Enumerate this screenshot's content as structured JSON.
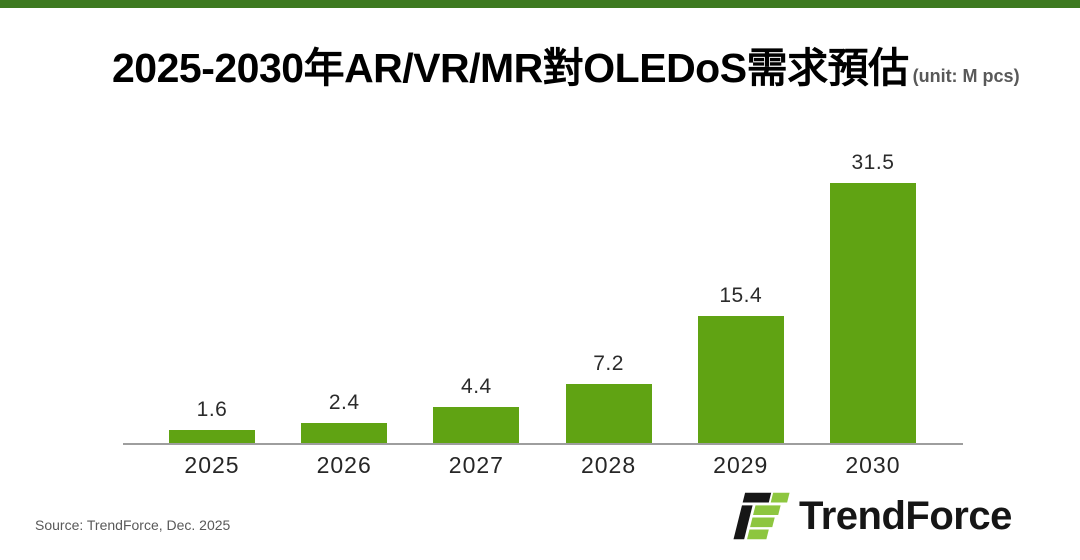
{
  "page": {
    "top_strip_color": "#3e7a21",
    "background_color": "#ffffff"
  },
  "header": {
    "title": "2025-2030年AR/VR/MR對OLEDoS需求預估",
    "unit_label": "(unit: M pcs)"
  },
  "chart_data": {
    "type": "bar",
    "title": "2025-2030年AR/VR/MR對OLEDoS需求預估",
    "unit": "M pcs",
    "categories": [
      "2025",
      "2026",
      "2027",
      "2028",
      "2029",
      "2030"
    ],
    "values": [
      1.6,
      2.4,
      4.4,
      7.2,
      15.4,
      31.5
    ],
    "xlabel": "",
    "ylabel": "",
    "ylim": [
      0,
      31.5
    ],
    "grid": false,
    "legend": false,
    "data_labels": true,
    "bar_color": "#60a313",
    "value_label_color": "#2b2b2b",
    "axis_line_color": "#9e9e9e"
  },
  "footer": {
    "source": "Source: TrendForce, Dec. 2025",
    "logo_text": "TrendForce",
    "logo_green": "#8dc63f",
    "logo_black": "#161616"
  }
}
